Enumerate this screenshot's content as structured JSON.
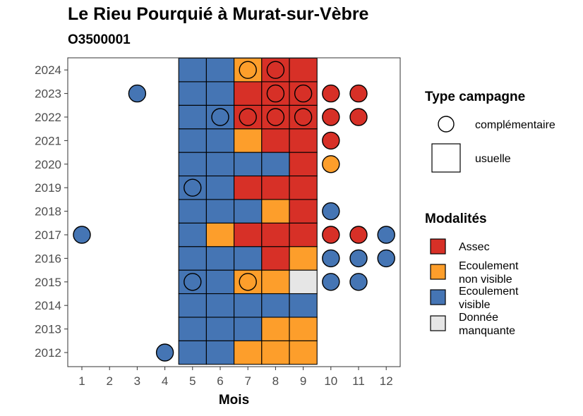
{
  "chart_data": {
    "type": "heatmap",
    "title": "Le Rieu Pourquié à Murat-sur-Vèbre",
    "subtitle": "O3500001",
    "xlabel": "Mois",
    "ylabel": "",
    "x_ticks": [
      "1",
      "2",
      "3",
      "4",
      "5",
      "6",
      "7",
      "8",
      "9",
      "10",
      "11",
      "12"
    ],
    "y_ticks": [
      "2012",
      "2013",
      "2014",
      "2015",
      "2016",
      "2017",
      "2018",
      "2019",
      "2020",
      "2021",
      "2022",
      "2023",
      "2024"
    ],
    "modalites": [
      {
        "key": "A",
        "label": "Assec",
        "label_lines": [
          "Assec"
        ],
        "color": "#d73027"
      },
      {
        "key": "N",
        "label": "Ecoulement non visible",
        "label_lines": [
          "Ecoulement",
          "non visible"
        ],
        "color": "#fd9e2b"
      },
      {
        "key": "V",
        "label": "Ecoulement visible",
        "label_lines": [
          "Ecoulement",
          "visible"
        ],
        "color": "#4575b4"
      },
      {
        "key": "M",
        "label": "Donnée manquante",
        "label_lines": [
          "Donnée",
          "manquante"
        ],
        "color": "#e6e6e6"
      }
    ],
    "legend_type_title": "Type campagne",
    "legend_type": [
      {
        "shape": "circle",
        "label": "complémentaire"
      },
      {
        "shape": "square",
        "label": "usuelle"
      }
    ],
    "legend_modalites_title": "Modalités",
    "legend_position": "right",
    "grid": false,
    "data": [
      {
        "year": 2012,
        "usuelle": {
          "5": "V",
          "6": "V",
          "7": "N",
          "8": "N",
          "9": "N"
        },
        "complementaire": {
          "4": "V"
        }
      },
      {
        "year": 2013,
        "usuelle": {
          "5": "V",
          "6": "V",
          "7": "V",
          "8": "N",
          "9": "N"
        },
        "complementaire": {}
      },
      {
        "year": 2014,
        "usuelle": {
          "5": "V",
          "6": "V",
          "7": "V",
          "8": "V",
          "9": "V"
        },
        "complementaire": {}
      },
      {
        "year": 2015,
        "usuelle": {
          "5": "V",
          "6": "V",
          "7": "N",
          "8": "N",
          "9": "M"
        },
        "complementaire": {
          "5": "V",
          "7": "N",
          "10": "V",
          "11": "V"
        }
      },
      {
        "year": 2016,
        "usuelle": {
          "5": "V",
          "6": "V",
          "7": "V",
          "8": "A",
          "9": "N"
        },
        "complementaire": {
          "10": "V",
          "11": "V",
          "12": "V"
        }
      },
      {
        "year": 2017,
        "usuelle": {
          "5": "V",
          "6": "N",
          "7": "A",
          "8": "A",
          "9": "A"
        },
        "complementaire": {
          "1": "V",
          "10": "A",
          "11": "A",
          "12": "V"
        }
      },
      {
        "year": 2018,
        "usuelle": {
          "5": "V",
          "6": "V",
          "7": "V",
          "8": "N",
          "9": "A"
        },
        "complementaire": {
          "10": "V"
        }
      },
      {
        "year": 2019,
        "usuelle": {
          "5": "V",
          "6": "V",
          "7": "A",
          "8": "A",
          "9": "A"
        },
        "complementaire": {
          "5": "V"
        }
      },
      {
        "year": 2020,
        "usuelle": {
          "5": "V",
          "6": "V",
          "7": "V",
          "8": "V",
          "9": "A"
        },
        "complementaire": {
          "10": "N"
        }
      },
      {
        "year": 2021,
        "usuelle": {
          "5": "V",
          "6": "V",
          "7": "N",
          "8": "A",
          "9": "A"
        },
        "complementaire": {
          "10": "A"
        }
      },
      {
        "year": 2022,
        "usuelle": {
          "5": "V",
          "6": "V",
          "7": "A",
          "8": "A",
          "9": "A"
        },
        "complementaire": {
          "6": "V",
          "7": "A",
          "8": "A",
          "9": "A",
          "10": "A",
          "11": "A"
        }
      },
      {
        "year": 2023,
        "usuelle": {
          "5": "V",
          "6": "V",
          "7": "A",
          "8": "A",
          "9": "A"
        },
        "complementaire": {
          "3": "V",
          "8": "A",
          "9": "A",
          "10": "A",
          "11": "A"
        }
      },
      {
        "year": 2024,
        "usuelle": {
          "5": "V",
          "6": "V",
          "7": "N",
          "8": "A",
          "9": "A"
        },
        "complementaire": {
          "7": "N",
          "8": "A"
        }
      }
    ]
  }
}
